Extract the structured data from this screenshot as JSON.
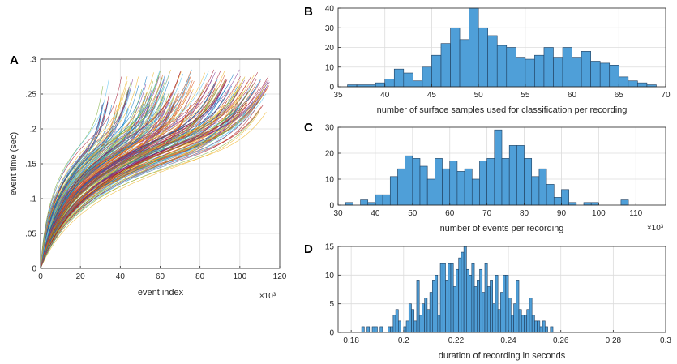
{
  "figure": {
    "panels": [
      "A",
      "B",
      "C",
      "D"
    ]
  },
  "chart_data": [
    {
      "id": "A",
      "type": "line",
      "xlabel": "event index",
      "ylabel": "event time (sec)",
      "x_exponent": "×10³",
      "xlim": [
        0,
        120
      ],
      "ylim": [
        0,
        0.3
      ],
      "xticks": [
        0,
        20,
        40,
        60,
        80,
        100,
        120
      ],
      "xtick_labels": [
        "0",
        "20",
        "40",
        "60",
        "80",
        "100",
        "120"
      ],
      "yticks": [
        0,
        0.05,
        0.1,
        0.15,
        0.2,
        0.25,
        0.3
      ],
      "ytick_labels": [
        "0",
        ".05",
        ".1",
        ".15",
        ".2",
        ".25",
        ".3"
      ],
      "n_series": 220,
      "curve_end_x_range": [
        30,
        115
      ],
      "curve_end_y_range": [
        0.19,
        0.285
      ],
      "colors": [
        "#0072bd",
        "#d95319",
        "#edb120",
        "#7e2f8e",
        "#77ac30",
        "#4dbeee",
        "#a2142f"
      ]
    },
    {
      "id": "B",
      "type": "bar",
      "xlabel": "number of surface samples used for classification per recording",
      "xlim": [
        35,
        70
      ],
      "ylim": [
        0,
        40
      ],
      "xticks": [
        35,
        40,
        45,
        50,
        55,
        60,
        65,
        70
      ],
      "xtick_labels": [
        "35",
        "40",
        "45",
        "50",
        "55",
        "60",
        "65",
        "70"
      ],
      "yticks": [
        0,
        10,
        20,
        30,
        40
      ],
      "ytick_labels": [
        "0",
        "10",
        "20",
        "30",
        "40"
      ],
      "bin_start": 36,
      "bin_width": 1,
      "values": [
        1,
        1,
        1,
        2,
        4,
        9,
        7,
        3,
        10,
        16,
        22,
        30,
        24,
        40,
        30,
        26,
        21,
        20,
        15,
        14,
        16,
        20,
        15,
        20,
        15,
        18,
        13,
        12,
        11,
        5,
        3,
        2,
        1
      ]
    },
    {
      "id": "C",
      "type": "bar",
      "xlabel": "number of events per recording",
      "x_exponent": "×10³",
      "xlim": [
        30,
        118
      ],
      "ylim": [
        0,
        30
      ],
      "xticks": [
        30,
        40,
        50,
        60,
        70,
        80,
        90,
        100,
        110
      ],
      "xtick_labels": [
        "30",
        "40",
        "50",
        "60",
        "70",
        "80",
        "90",
        "100",
        "110"
      ],
      "yticks": [
        0,
        10,
        20,
        30
      ],
      "ytick_labels": [
        "0",
        "10",
        "20",
        "30"
      ],
      "bin_start": 32,
      "bin_width": 2,
      "values": [
        1,
        0,
        2,
        1,
        4,
        4,
        11,
        14,
        19,
        18,
        15,
        10,
        18,
        14,
        17,
        13,
        14,
        10,
        17,
        18,
        29,
        18,
        23,
        23,
        18,
        11,
        14,
        8,
        3,
        6,
        1,
        0,
        1,
        1,
        0,
        0,
        0,
        2
      ]
    },
    {
      "id": "D",
      "type": "bar",
      "xlabel": "duration of recording in seconds",
      "xlim": [
        0.175,
        0.3
      ],
      "ylim": [
        0,
        15
      ],
      "xticks": [
        0.18,
        0.2,
        0.22,
        0.24,
        0.26,
        0.28,
        0.3
      ],
      "xtick_labels": [
        "0.18",
        "0.2",
        "0.22",
        "0.24",
        "0.26",
        "0.28",
        "0.3"
      ],
      "yticks": [
        0,
        5,
        10,
        15
      ],
      "ytick_labels": [
        "0",
        "5",
        "10",
        "15"
      ],
      "bin_start": 0.184,
      "bin_width": 0.001,
      "values": [
        1,
        0,
        1,
        0,
        1,
        1,
        0,
        1,
        0,
        0,
        1,
        1,
        3,
        4,
        2,
        0,
        1,
        2,
        5,
        4,
        2,
        9,
        3,
        5,
        6,
        4,
        7,
        9,
        10,
        3,
        12,
        12,
        9,
        12,
        12,
        8,
        11,
        13,
        14,
        15,
        11,
        10,
        12,
        8,
        9,
        11,
        7,
        12,
        8,
        9,
        5,
        10,
        4,
        7,
        10,
        10,
        6,
        3,
        5,
        9,
        4,
        3,
        3,
        4,
        6,
        3,
        2,
        2,
        1,
        2,
        1,
        0,
        1
      ]
    }
  ]
}
